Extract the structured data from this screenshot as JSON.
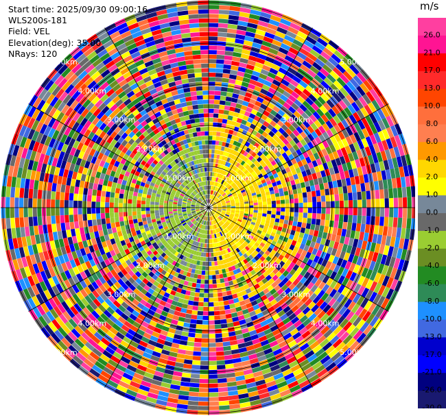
{
  "header": {
    "start_time": "Start time: 2025/09/30 09:00:16",
    "instrument": "WLS200s-181",
    "field": "Field: VEL",
    "elevation": "Elevation(deg): 35.00",
    "nrays": "NRays: 120"
  },
  "chart_data": {
    "type": "heatmap",
    "projection": "polar-ppi",
    "field": "VEL",
    "elevation_deg": 35.0,
    "n_rays": 120,
    "range_ring_labels": [
      "1.00km",
      "2.00km",
      "3.00km",
      "4.00km",
      "5.00km"
    ],
    "colorbar": {
      "unit": "m/s",
      "ticks": [
        "26.0",
        "21.0",
        "17.0",
        "13.0",
        "10.0",
        "8.0",
        "6.0",
        "4.0",
        "2.0",
        "1.0",
        "0.0",
        "-1.0",
        "-2.0",
        "-4.0",
        "-6.0",
        "-8.0",
        "-10.0",
        "-13.0",
        "-17.0",
        "-21.0",
        "-26.0",
        "-30.0"
      ],
      "colors": [
        "#ff3fa0",
        "#ff1493",
        "#ff0000",
        "#ff2a2a",
        "#ff4500",
        "#ff6f3c",
        "#ff7f50",
        "#ff9900",
        "#ffd700",
        "#ffff00",
        "#778899",
        "#696969",
        "#9acd32",
        "#6b8e23",
        "#228b22",
        "#2e8b57",
        "#1e90ff",
        "#4169e1",
        "#0000cd",
        "#0000ff",
        "#000080",
        "#191970"
      ]
    }
  }
}
